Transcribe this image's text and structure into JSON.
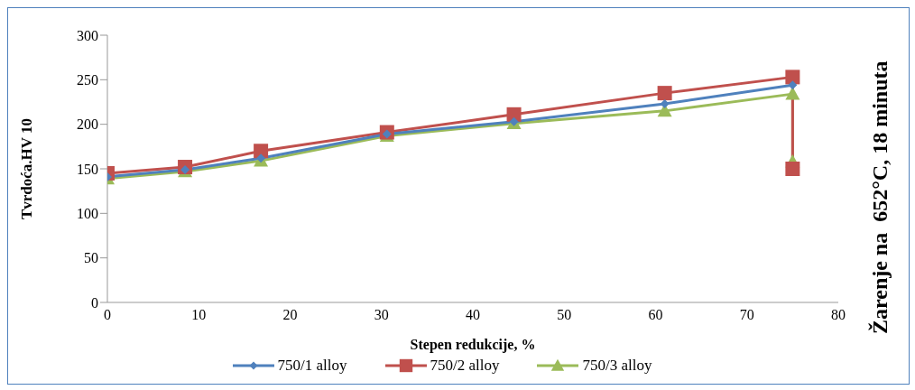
{
  "chart_data": {
    "type": "line",
    "xlabel": "Stepen redukcije, %",
    "ylabel": "Tvrdoća.HV 10",
    "xlim": [
      0,
      80
    ],
    "xticks": [
      0,
      10,
      20,
      30,
      40,
      50,
      60,
      70,
      80
    ],
    "ylim": [
      0,
      300
    ],
    "yticks": [
      0,
      50,
      100,
      150,
      200,
      250,
      300
    ],
    "grid": false,
    "legend": "bottom",
    "line_style": "solid",
    "annotations": [
      "Žarenje na  652°C, 18 minuta"
    ],
    "series": [
      {
        "name": "750/1 alloy",
        "color": "#4f81bd",
        "marker": "diamond",
        "x": [
          0,
          8.5,
          16.8,
          30.6,
          44.5,
          61,
          75
        ],
        "values": [
          141,
          149,
          162,
          189,
          203,
          223,
          244
        ]
      },
      {
        "name": "750/2 alloy",
        "color": "#c0504d",
        "marker": "square",
        "x": [
          0,
          8.5,
          16.8,
          30.6,
          44.5,
          61,
          75,
          75
        ],
        "values": [
          145,
          152,
          170,
          191,
          211,
          235,
          253,
          150
        ]
      },
      {
        "name": "750/3 alloy",
        "color": "#9bbb59",
        "marker": "triangle",
        "x": [
          0,
          8.5,
          16.8,
          30.6,
          44.5,
          61,
          75,
          75
        ],
        "values": [
          139,
          147,
          159,
          187,
          201,
          215,
          234,
          158
        ]
      }
    ]
  }
}
